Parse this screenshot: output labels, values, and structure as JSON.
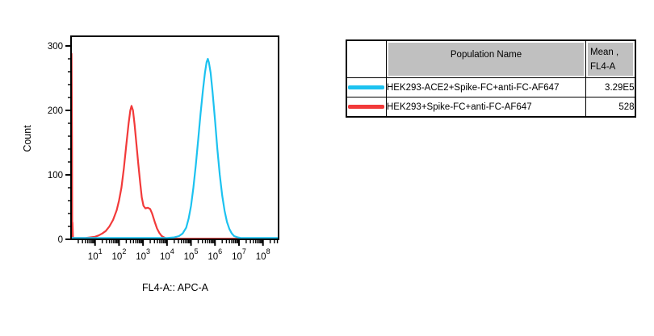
{
  "chart_data": {
    "type": "line",
    "title": "",
    "xlabel": "FL4-A:: APC-A",
    "ylabel": "Count",
    "x_scale": "log10",
    "x_range_log10": [
      0,
      8.65
    ],
    "ylim": [
      0,
      315
    ],
    "y_ticks": [
      0,
      100,
      200,
      300
    ],
    "y_minor_step": 20,
    "x_decade_ticks": [
      1,
      2,
      3,
      4,
      5,
      6,
      7,
      8
    ],
    "x_tick_base": "10",
    "grid": false,
    "legend_position": "separate-table",
    "series": [
      {
        "name": "HEK293-ACE2+Spike-FC+anti-FC-AF647",
        "color": "#1cc2f0",
        "points": [
          [
            0.0,
            2
          ],
          [
            1.0,
            2
          ],
          [
            2.0,
            2
          ],
          [
            3.0,
            2
          ],
          [
            4.0,
            2
          ],
          [
            4.3,
            3
          ],
          [
            4.5,
            5
          ],
          [
            4.65,
            9
          ],
          [
            4.8,
            18
          ],
          [
            4.9,
            32
          ],
          [
            5.0,
            52
          ],
          [
            5.1,
            80
          ],
          [
            5.2,
            115
          ],
          [
            5.3,
            155
          ],
          [
            5.4,
            195
          ],
          [
            5.5,
            232
          ],
          [
            5.58,
            258
          ],
          [
            5.65,
            275
          ],
          [
            5.7,
            280
          ],
          [
            5.75,
            274
          ],
          [
            5.82,
            258
          ],
          [
            5.9,
            228
          ],
          [
            6.0,
            185
          ],
          [
            6.1,
            140
          ],
          [
            6.2,
            100
          ],
          [
            6.3,
            68
          ],
          [
            6.4,
            44
          ],
          [
            6.5,
            27
          ],
          [
            6.6,
            16
          ],
          [
            6.7,
            9
          ],
          [
            6.8,
            5
          ],
          [
            6.95,
            3
          ],
          [
            7.1,
            2
          ],
          [
            7.5,
            2
          ],
          [
            8.0,
            2
          ],
          [
            8.62,
            2
          ]
        ]
      },
      {
        "name": "HEK293+Spike-FC+anti-FC-AF647",
        "color": "#f23a3a",
        "points": [
          [
            0.0,
            2
          ],
          [
            0.02,
            288
          ],
          [
            0.04,
            150
          ],
          [
            0.05,
            2
          ],
          [
            0.06,
            26
          ],
          [
            0.08,
            2
          ],
          [
            0.3,
            2
          ],
          [
            0.6,
            2
          ],
          [
            0.8,
            3
          ],
          [
            1.0,
            4
          ],
          [
            1.15,
            6
          ],
          [
            1.3,
            9
          ],
          [
            1.45,
            13
          ],
          [
            1.6,
            20
          ],
          [
            1.75,
            30
          ],
          [
            1.9,
            45
          ],
          [
            2.0,
            60
          ],
          [
            2.1,
            80
          ],
          [
            2.2,
            110
          ],
          [
            2.3,
            145
          ],
          [
            2.4,
            180
          ],
          [
            2.47,
            200
          ],
          [
            2.52,
            207
          ],
          [
            2.58,
            200
          ],
          [
            2.65,
            178
          ],
          [
            2.72,
            150
          ],
          [
            2.8,
            118
          ],
          [
            2.88,
            88
          ],
          [
            2.95,
            65
          ],
          [
            3.02,
            52
          ],
          [
            3.1,
            48
          ],
          [
            3.2,
            49
          ],
          [
            3.3,
            47
          ],
          [
            3.38,
            40
          ],
          [
            3.48,
            28
          ],
          [
            3.58,
            17
          ],
          [
            3.68,
            10
          ],
          [
            3.78,
            5
          ],
          [
            3.88,
            3
          ],
          [
            4.0,
            1
          ],
          [
            4.5,
            1
          ],
          [
            5.0,
            1
          ],
          [
            6.0,
            1
          ],
          [
            7.0,
            1
          ],
          [
            8.0,
            1
          ],
          [
            8.62,
            1
          ]
        ]
      }
    ]
  },
  "table": {
    "headers": {
      "swatch": "",
      "population": "Population Name",
      "mean_line1": "Mean ,",
      "mean_line2": "FL4-A"
    },
    "rows": [
      {
        "population": "HEK293-ACE2+Spike-FC+anti-FC-AF647",
        "mean": "3.29E5",
        "color": "#1cc2f0"
      },
      {
        "population": "HEK293+Spike-FC+anti-FC-AF647",
        "mean": "528",
        "color": "#f23a3a"
      }
    ]
  },
  "colors": {
    "cyan_series": "#1cc2f0",
    "red_series": "#f23a3a",
    "table_header_bg": "#c0c0c0",
    "axis": "#000000"
  }
}
